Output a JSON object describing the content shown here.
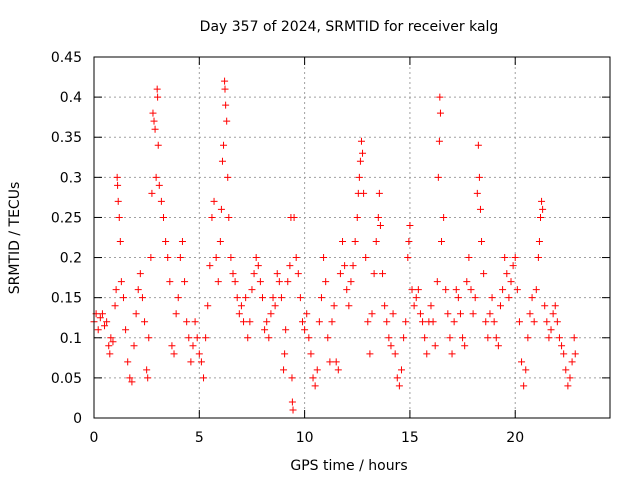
{
  "chart_data": {
    "type": "scatter",
    "title": "Day 357 of 2024, SRMTID for receiver kalg",
    "xlabel": "GPS time / hours",
    "ylabel": "SRMTID / TECUs",
    "xlim": [
      0,
      24.5
    ],
    "ylim": [
      0,
      0.45
    ],
    "xticks": [
      0,
      5,
      10,
      15,
      20
    ],
    "xtick_labels": [
      "0",
      "5",
      "10",
      "15",
      "20"
    ],
    "yticks": [
      0,
      0.05,
      0.1,
      0.15,
      0.2,
      0.25,
      0.3,
      0.35,
      0.4,
      0.45
    ],
    "ytick_labels": [
      "0",
      "0.05",
      "0.1",
      "0.15",
      "0.2",
      "0.25",
      "0.3",
      "0.35",
      "0.4",
      "0.45"
    ],
    "grid": true,
    "marker": "+",
    "color": "#ff0000",
    "series": [
      {
        "name": "SRMTID",
        "points": [
          [
            0.0,
            0.12
          ],
          [
            0.1,
            0.13
          ],
          [
            0.2,
            0.11
          ],
          [
            0.3,
            0.125
          ],
          [
            0.4,
            0.13
          ],
          [
            0.5,
            0.115
          ],
          [
            0.6,
            0.12
          ],
          [
            0.7,
            0.09
          ],
          [
            0.75,
            0.08
          ],
          [
            0.8,
            0.1
          ],
          [
            0.9,
            0.095
          ],
          [
            1.0,
            0.14
          ],
          [
            1.05,
            0.16
          ],
          [
            1.1,
            0.3
          ],
          [
            1.12,
            0.29
          ],
          [
            1.15,
            0.27
          ],
          [
            1.2,
            0.25
          ],
          [
            1.25,
            0.22
          ],
          [
            1.3,
            0.17
          ],
          [
            1.4,
            0.15
          ],
          [
            1.5,
            0.11
          ],
          [
            1.6,
            0.07
          ],
          [
            1.7,
            0.05
          ],
          [
            1.8,
            0.045
          ],
          [
            1.9,
            0.09
          ],
          [
            2.0,
            0.13
          ],
          [
            2.1,
            0.16
          ],
          [
            2.2,
            0.18
          ],
          [
            2.3,
            0.15
          ],
          [
            2.4,
            0.12
          ],
          [
            2.5,
            0.06
          ],
          [
            2.55,
            0.05
          ],
          [
            2.6,
            0.1
          ],
          [
            2.7,
            0.2
          ],
          [
            2.75,
            0.28
          ],
          [
            2.8,
            0.38
          ],
          [
            2.85,
            0.37
          ],
          [
            2.9,
            0.36
          ],
          [
            2.95,
            0.3
          ],
          [
            3.0,
            0.41
          ],
          [
            3.02,
            0.4
          ],
          [
            3.05,
            0.34
          ],
          [
            3.1,
            0.29
          ],
          [
            3.2,
            0.27
          ],
          [
            3.3,
            0.25
          ],
          [
            3.4,
            0.22
          ],
          [
            3.5,
            0.2
          ],
          [
            3.6,
            0.17
          ],
          [
            3.7,
            0.09
          ],
          [
            3.8,
            0.08
          ],
          [
            3.9,
            0.13
          ],
          [
            4.0,
            0.15
          ],
          [
            4.1,
            0.2
          ],
          [
            4.2,
            0.22
          ],
          [
            4.3,
            0.17
          ],
          [
            4.4,
            0.12
          ],
          [
            4.5,
            0.1
          ],
          [
            4.6,
            0.07
          ],
          [
            4.7,
            0.09
          ],
          [
            4.8,
            0.12
          ],
          [
            4.9,
            0.1
          ],
          [
            5.0,
            0.08
          ],
          [
            5.1,
            0.07
          ],
          [
            5.2,
            0.05
          ],
          [
            5.3,
            0.1
          ],
          [
            5.4,
            0.14
          ],
          [
            5.5,
            0.19
          ],
          [
            5.6,
            0.25
          ],
          [
            5.7,
            0.27
          ],
          [
            5.8,
            0.2
          ],
          [
            5.9,
            0.17
          ],
          [
            6.0,
            0.22
          ],
          [
            6.05,
            0.26
          ],
          [
            6.1,
            0.32
          ],
          [
            6.15,
            0.34
          ],
          [
            6.2,
            0.42
          ],
          [
            6.22,
            0.41
          ],
          [
            6.25,
            0.39
          ],
          [
            6.3,
            0.37
          ],
          [
            6.35,
            0.3
          ],
          [
            6.4,
            0.25
          ],
          [
            6.5,
            0.2
          ],
          [
            6.6,
            0.18
          ],
          [
            6.7,
            0.17
          ],
          [
            6.8,
            0.15
          ],
          [
            6.9,
            0.13
          ],
          [
            7.0,
            0.14
          ],
          [
            7.1,
            0.12
          ],
          [
            7.2,
            0.15
          ],
          [
            7.3,
            0.1
          ],
          [
            7.4,
            0.12
          ],
          [
            7.5,
            0.16
          ],
          [
            7.6,
            0.18
          ],
          [
            7.7,
            0.2
          ],
          [
            7.8,
            0.19
          ],
          [
            7.9,
            0.17
          ],
          [
            8.0,
            0.15
          ],
          [
            8.1,
            0.11
          ],
          [
            8.2,
            0.12
          ],
          [
            8.3,
            0.1
          ],
          [
            8.4,
            0.13
          ],
          [
            8.5,
            0.15
          ],
          [
            8.6,
            0.14
          ],
          [
            8.7,
            0.18
          ],
          [
            8.8,
            0.17
          ],
          [
            8.9,
            0.15
          ],
          [
            9.0,
            0.06
          ],
          [
            9.05,
            0.08
          ],
          [
            9.1,
            0.11
          ],
          [
            9.2,
            0.17
          ],
          [
            9.3,
            0.19
          ],
          [
            9.35,
            0.25
          ],
          [
            9.4,
            0.05
          ],
          [
            9.42,
            0.02
          ],
          [
            9.45,
            0.01
          ],
          [
            9.5,
            0.25
          ],
          [
            9.6,
            0.2
          ],
          [
            9.7,
            0.18
          ],
          [
            9.8,
            0.15
          ],
          [
            9.9,
            0.12
          ],
          [
            10.0,
            0.11
          ],
          [
            10.1,
            0.13
          ],
          [
            10.2,
            0.1
          ],
          [
            10.3,
            0.08
          ],
          [
            10.4,
            0.05
          ],
          [
            10.5,
            0.04
          ],
          [
            10.6,
            0.06
          ],
          [
            10.7,
            0.12
          ],
          [
            10.8,
            0.15
          ],
          [
            10.9,
            0.2
          ],
          [
            11.0,
            0.17
          ],
          [
            11.1,
            0.1
          ],
          [
            11.2,
            0.07
          ],
          [
            11.3,
            0.12
          ],
          [
            11.4,
            0.14
          ],
          [
            11.5,
            0.07
          ],
          [
            11.6,
            0.06
          ],
          [
            11.7,
            0.18
          ],
          [
            11.8,
            0.22
          ],
          [
            11.9,
            0.19
          ],
          [
            12.0,
            0.16
          ],
          [
            12.1,
            0.14
          ],
          [
            12.2,
            0.17
          ],
          [
            12.3,
            0.19
          ],
          [
            12.4,
            0.22
          ],
          [
            12.5,
            0.25
          ],
          [
            12.55,
            0.28
          ],
          [
            12.6,
            0.3
          ],
          [
            12.65,
            0.32
          ],
          [
            12.7,
            0.345
          ],
          [
            12.75,
            0.33
          ],
          [
            12.8,
            0.28
          ],
          [
            12.9,
            0.2
          ],
          [
            13.0,
            0.12
          ],
          [
            13.1,
            0.08
          ],
          [
            13.2,
            0.13
          ],
          [
            13.3,
            0.18
          ],
          [
            13.4,
            0.22
          ],
          [
            13.5,
            0.25
          ],
          [
            13.55,
            0.28
          ],
          [
            13.6,
            0.24
          ],
          [
            13.7,
            0.18
          ],
          [
            13.8,
            0.14
          ],
          [
            13.9,
            0.12
          ],
          [
            14.0,
            0.1
          ],
          [
            14.1,
            0.09
          ],
          [
            14.2,
            0.13
          ],
          [
            14.3,
            0.08
          ],
          [
            14.4,
            0.05
          ],
          [
            14.5,
            0.04
          ],
          [
            14.6,
            0.06
          ],
          [
            14.7,
            0.1
          ],
          [
            14.8,
            0.12
          ],
          [
            14.9,
            0.2
          ],
          [
            14.95,
            0.22
          ],
          [
            15.0,
            0.24
          ],
          [
            15.1,
            0.16
          ],
          [
            15.2,
            0.14
          ],
          [
            15.3,
            0.15
          ],
          [
            15.4,
            0.16
          ],
          [
            15.5,
            0.13
          ],
          [
            15.6,
            0.12
          ],
          [
            15.7,
            0.1
          ],
          [
            15.8,
            0.08
          ],
          [
            15.9,
            0.12
          ],
          [
            16.0,
            0.14
          ],
          [
            16.1,
            0.12
          ],
          [
            16.2,
            0.09
          ],
          [
            16.3,
            0.17
          ],
          [
            16.35,
            0.3
          ],
          [
            16.4,
            0.345
          ],
          [
            16.42,
            0.4
          ],
          [
            16.45,
            0.38
          ],
          [
            16.5,
            0.22
          ],
          [
            16.6,
            0.25
          ],
          [
            16.7,
            0.16
          ],
          [
            16.8,
            0.13
          ],
          [
            16.9,
            0.1
          ],
          [
            17.0,
            0.08
          ],
          [
            17.1,
            0.12
          ],
          [
            17.2,
            0.16
          ],
          [
            17.3,
            0.15
          ],
          [
            17.4,
            0.13
          ],
          [
            17.5,
            0.1
          ],
          [
            17.6,
            0.09
          ],
          [
            17.7,
            0.17
          ],
          [
            17.8,
            0.2
          ],
          [
            17.9,
            0.16
          ],
          [
            18.0,
            0.13
          ],
          [
            18.1,
            0.15
          ],
          [
            18.2,
            0.28
          ],
          [
            18.25,
            0.34
          ],
          [
            18.3,
            0.3
          ],
          [
            18.35,
            0.26
          ],
          [
            18.4,
            0.22
          ],
          [
            18.5,
            0.18
          ],
          [
            18.6,
            0.12
          ],
          [
            18.7,
            0.1
          ],
          [
            18.8,
            0.13
          ],
          [
            18.9,
            0.15
          ],
          [
            19.0,
            0.12
          ],
          [
            19.1,
            0.1
          ],
          [
            19.2,
            0.09
          ],
          [
            19.3,
            0.14
          ],
          [
            19.4,
            0.16
          ],
          [
            19.5,
            0.2
          ],
          [
            19.6,
            0.18
          ],
          [
            19.7,
            0.15
          ],
          [
            19.8,
            0.17
          ],
          [
            19.9,
            0.19
          ],
          [
            20.0,
            0.2
          ],
          [
            20.1,
            0.16
          ],
          [
            20.2,
            0.12
          ],
          [
            20.3,
            0.07
          ],
          [
            20.4,
            0.04
          ],
          [
            20.5,
            0.06
          ],
          [
            20.6,
            0.1
          ],
          [
            20.7,
            0.13
          ],
          [
            20.8,
            0.15
          ],
          [
            20.9,
            0.12
          ],
          [
            21.0,
            0.16
          ],
          [
            21.1,
            0.2
          ],
          [
            21.15,
            0.22
          ],
          [
            21.2,
            0.25
          ],
          [
            21.25,
            0.27
          ],
          [
            21.3,
            0.26
          ],
          [
            21.4,
            0.14
          ],
          [
            21.5,
            0.12
          ],
          [
            21.6,
            0.1
          ],
          [
            21.7,
            0.11
          ],
          [
            21.8,
            0.13
          ],
          [
            21.9,
            0.14
          ],
          [
            22.0,
            0.12
          ],
          [
            22.1,
            0.1
          ],
          [
            22.2,
            0.09
          ],
          [
            22.3,
            0.08
          ],
          [
            22.4,
            0.06
          ],
          [
            22.5,
            0.04
          ],
          [
            22.6,
            0.05
          ],
          [
            22.7,
            0.07
          ],
          [
            22.8,
            0.1
          ],
          [
            22.85,
            0.08
          ]
        ]
      }
    ]
  }
}
